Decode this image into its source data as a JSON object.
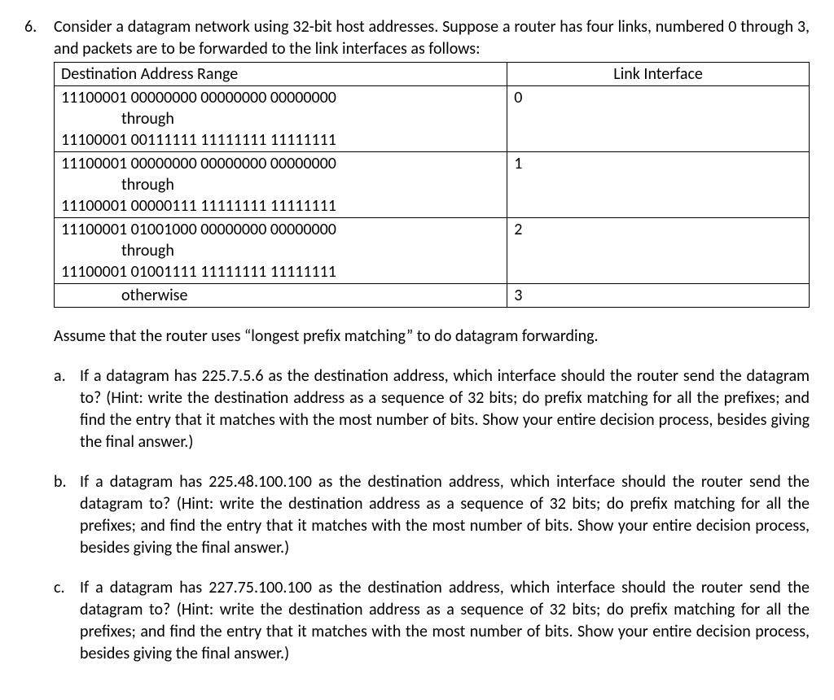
{
  "question_number": "6.",
  "intro": "Consider a datagram network using 32-bit host addresses. Suppose a router has four links, numbered 0 through 3, and packets are to be forwarded to the link interfaces as follows:",
  "table": {
    "headers": {
      "dest": "Destination Address Range",
      "link": "Link Interface"
    },
    "rows": [
      {
        "addr_start": "11100001 00000000 00000000 00000000",
        "through": "through",
        "addr_end": "11100001 00111111 11111111 11111111",
        "link": "0"
      },
      {
        "addr_start": "11100001 00000000 00000000 00000000",
        "through": "through",
        "addr_end": "11100001 00000111 11111111 11111111",
        "link": "1"
      },
      {
        "addr_start": "11100001 01001000 00000000 00000000",
        "through": "through",
        "addr_end": "11100001 01001111 11111111 11111111",
        "link": "2"
      },
      {
        "otherwise": "otherwise",
        "link": "3"
      }
    ]
  },
  "assume": "Assume that the router uses “longest prefix matching” to do datagram forwarding.",
  "parts": {
    "a": {
      "letter": "a.",
      "text": "If a datagram has 225.7.5.6 as the destination address, which interface should the router send the datagram to? (Hint: write the destination address as a sequence of 32 bits; do prefix matching for all the prefixes; and find the entry that it matches with the most number of bits. Show your entire decision process, besides giving the final answer.)"
    },
    "b": {
      "letter": "b.",
      "text": "If a datagram has 225.48.100.100 as the destination address, which interface should the router send the datagram to? (Hint: write the destination address as a sequence of 32 bits; do prefix matching for all the prefixes; and find the entry that it matches with the most number of bits. Show your entire decision process, besides giving the final answer.)"
    },
    "c": {
      "letter": "c.",
      "text": "If a datagram has 227.75.100.100 as the destination address, which interface should the router send the datagram to? (Hint: write the destination address as a sequence of 32 bits; do prefix matching for all the prefixes; and find the entry that it matches with the most number of bits. Show your entire decision process, besides giving the final answer.)"
    }
  }
}
